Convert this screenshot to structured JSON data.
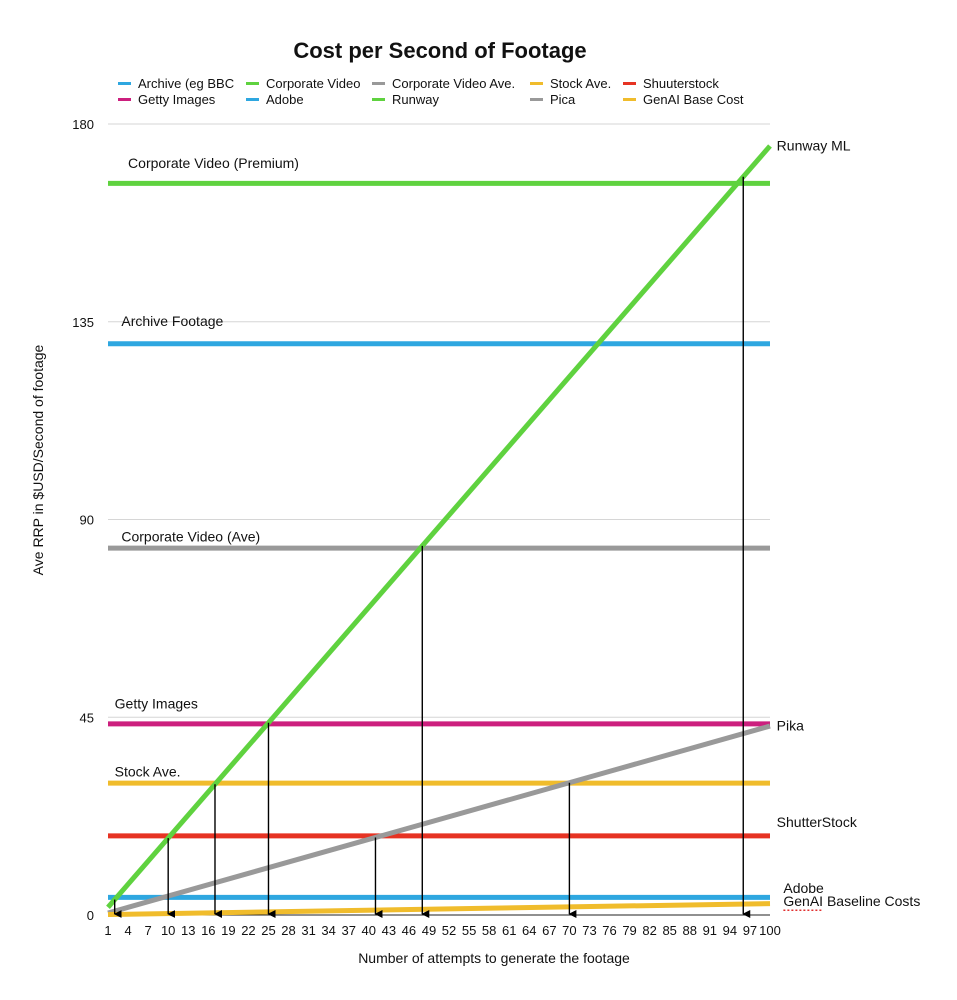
{
  "chart_data": {
    "type": "line",
    "title": "Cost per Second of Footage",
    "xlabel": "Number of attempts to generate the footage",
    "ylabel": "Ave RRP in $USD/Second of footage",
    "xlim": [
      1,
      100
    ],
    "ylim": [
      0,
      180
    ],
    "x_ticks": [
      1,
      4,
      7,
      10,
      13,
      16,
      19,
      22,
      25,
      28,
      31,
      34,
      37,
      40,
      43,
      46,
      49,
      52,
      55,
      58,
      61,
      64,
      67,
      70,
      73,
      76,
      79,
      82,
      85,
      88,
      91,
      94,
      97,
      100
    ],
    "y_ticks": [
      0,
      45,
      90,
      135,
      180
    ],
    "grid": true,
    "legend_position": "top",
    "legend": [
      {
        "label": "Archive (eg BBC",
        "color": "#2ea7e0"
      },
      {
        "label": "Corporate Video",
        "color": "#5fd23f"
      },
      {
        "label": "Corporate Video Ave.",
        "color": "#999999"
      },
      {
        "label": "Stock Ave.",
        "color": "#f0bc2c"
      },
      {
        "label": "Shuuterstock",
        "color": "#e63323"
      },
      {
        "label": "Getty Images",
        "color": "#cc1f7e"
      },
      {
        "label": "Adobe",
        "color": "#2ea7e0"
      },
      {
        "label": "Runway",
        "color": "#5fd23f"
      },
      {
        "label": "Pica",
        "color": "#999999"
      },
      {
        "label": "GenAI Base Cost",
        "color": "#f0bc2c"
      }
    ],
    "series": [
      {
        "name": "Archive (eg BBC",
        "color": "#2ea7e0",
        "x": [
          1,
          100
        ],
        "values": [
          130,
          130
        ]
      },
      {
        "name": "Corporate Video",
        "color": "#5fd23f",
        "x": [
          1,
          100
        ],
        "values": [
          166.5,
          166.5
        ]
      },
      {
        "name": "Corporate Video Ave.",
        "color": "#999999",
        "x": [
          1,
          100
        ],
        "values": [
          83.5,
          83.5
        ]
      },
      {
        "name": "Stock Ave.",
        "color": "#f0bc2c",
        "x": [
          1,
          100
        ],
        "values": [
          30,
          30
        ]
      },
      {
        "name": "Shuuterstock",
        "color": "#e63323",
        "x": [
          1,
          100
        ],
        "values": [
          18,
          18
        ]
      },
      {
        "name": "Getty Images",
        "color": "#cc1f7e",
        "x": [
          1,
          100
        ],
        "values": [
          43.5,
          43.5
        ]
      },
      {
        "name": "Adobe",
        "color": "#2ea7e0",
        "x": [
          1,
          100
        ],
        "values": [
          4,
          4
        ]
      },
      {
        "name": "Runway",
        "color": "#5fd23f",
        "x": [
          1,
          100
        ],
        "values": [
          1.75,
          175
        ]
      },
      {
        "name": "Pica",
        "color": "#999999",
        "x": [
          1,
          100
        ],
        "values": [
          0.45,
          43
        ]
      },
      {
        "name": "GenAI Base Cost",
        "color": "#f0bc2c",
        "x": [
          1,
          100
        ],
        "values": [
          0.1,
          2.6
        ]
      }
    ],
    "annotations": [
      {
        "text": "Corporate Video (Premium)",
        "x": 4,
        "y": 170
      },
      {
        "text": "Archive Footage",
        "x": 3,
        "y": 134
      },
      {
        "text": "Corporate Video (Ave)",
        "x": 3,
        "y": 85
      },
      {
        "text": "Getty Images",
        "x": 2,
        "y": 47
      },
      {
        "text": "Stock Ave.",
        "x": 2,
        "y": 31.5
      },
      {
        "text": "Runway ML",
        "x": 101,
        "y": 174
      },
      {
        "text": "Pika",
        "x": 101,
        "y": 42
      },
      {
        "text": "ShutterStock",
        "x": 101,
        "y": 20
      },
      {
        "text": "Adobe",
        "x": 102,
        "y": 5
      },
      {
        "text": "GenAI Baseline Costs",
        "x": 102,
        "y": 2
      }
    ],
    "arrows_x": [
      2,
      10,
      17,
      25,
      41,
      48,
      70,
      96
    ]
  }
}
